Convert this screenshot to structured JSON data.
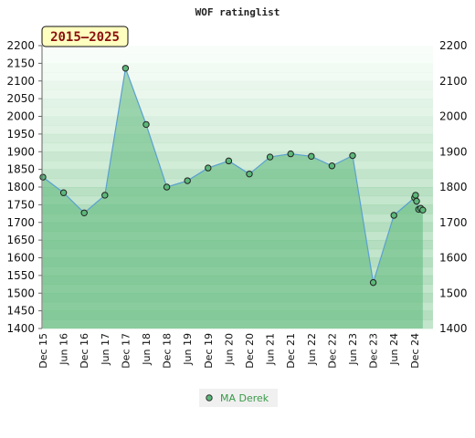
{
  "chart_data": {
    "type": "area",
    "title": "WOF ratinglist",
    "period": "2015–2025",
    "ylim": [
      1400,
      2200
    ],
    "yticks": [
      2200,
      2150,
      2100,
      2050,
      2000,
      1950,
      1900,
      1850,
      1800,
      1750,
      1700,
      1650,
      1600,
      1550,
      1500,
      1450,
      1400
    ],
    "yticks_right": [
      2200,
      2100,
      2000,
      1900,
      1800,
      1700,
      1600,
      1500,
      1400
    ],
    "xticks": [
      "Dec 15",
      "Jun 16",
      "Dec 16",
      "Jun 17",
      "Dec 17",
      "Jun 18",
      "Dec 18",
      "Jun 19",
      "Dec 19",
      "Jun 20",
      "Dec 20",
      "Jun 21",
      "Dec 21",
      "Jun 22",
      "Dec 22",
      "Jun 23",
      "Dec 23",
      "Jun 24",
      "Dec 24"
    ],
    "legend_position": "bottom-center",
    "grid": true,
    "series": [
      {
        "name": "MA Derek",
        "color": "#5aa0d2",
        "fill": "#5cb87a",
        "x": [
          0,
          1,
          2,
          3,
          4,
          5,
          6,
          7,
          8,
          9,
          10,
          11,
          12,
          13,
          14,
          15,
          16,
          17,
          18,
          18.05,
          18.1,
          18.2,
          18.3,
          18.4
        ],
        "values": [
          1828,
          1784,
          1727,
          1777,
          2136,
          1977,
          1800,
          1818,
          1854,
          1874,
          1837,
          1885,
          1894,
          1887,
          1860,
          1889,
          1530,
          1720,
          1770,
          1777,
          1760,
          1737,
          1740,
          1735
        ]
      }
    ]
  },
  "colors": {
    "band_dark": "#7ac48e",
    "band_light": "#f2faf4",
    "background": "#ffffff",
    "badge_bg": "#ffffc0",
    "legend_bg": "#f0f0f0",
    "legend_text": "#3a9a4a",
    "axis": "#666666"
  }
}
